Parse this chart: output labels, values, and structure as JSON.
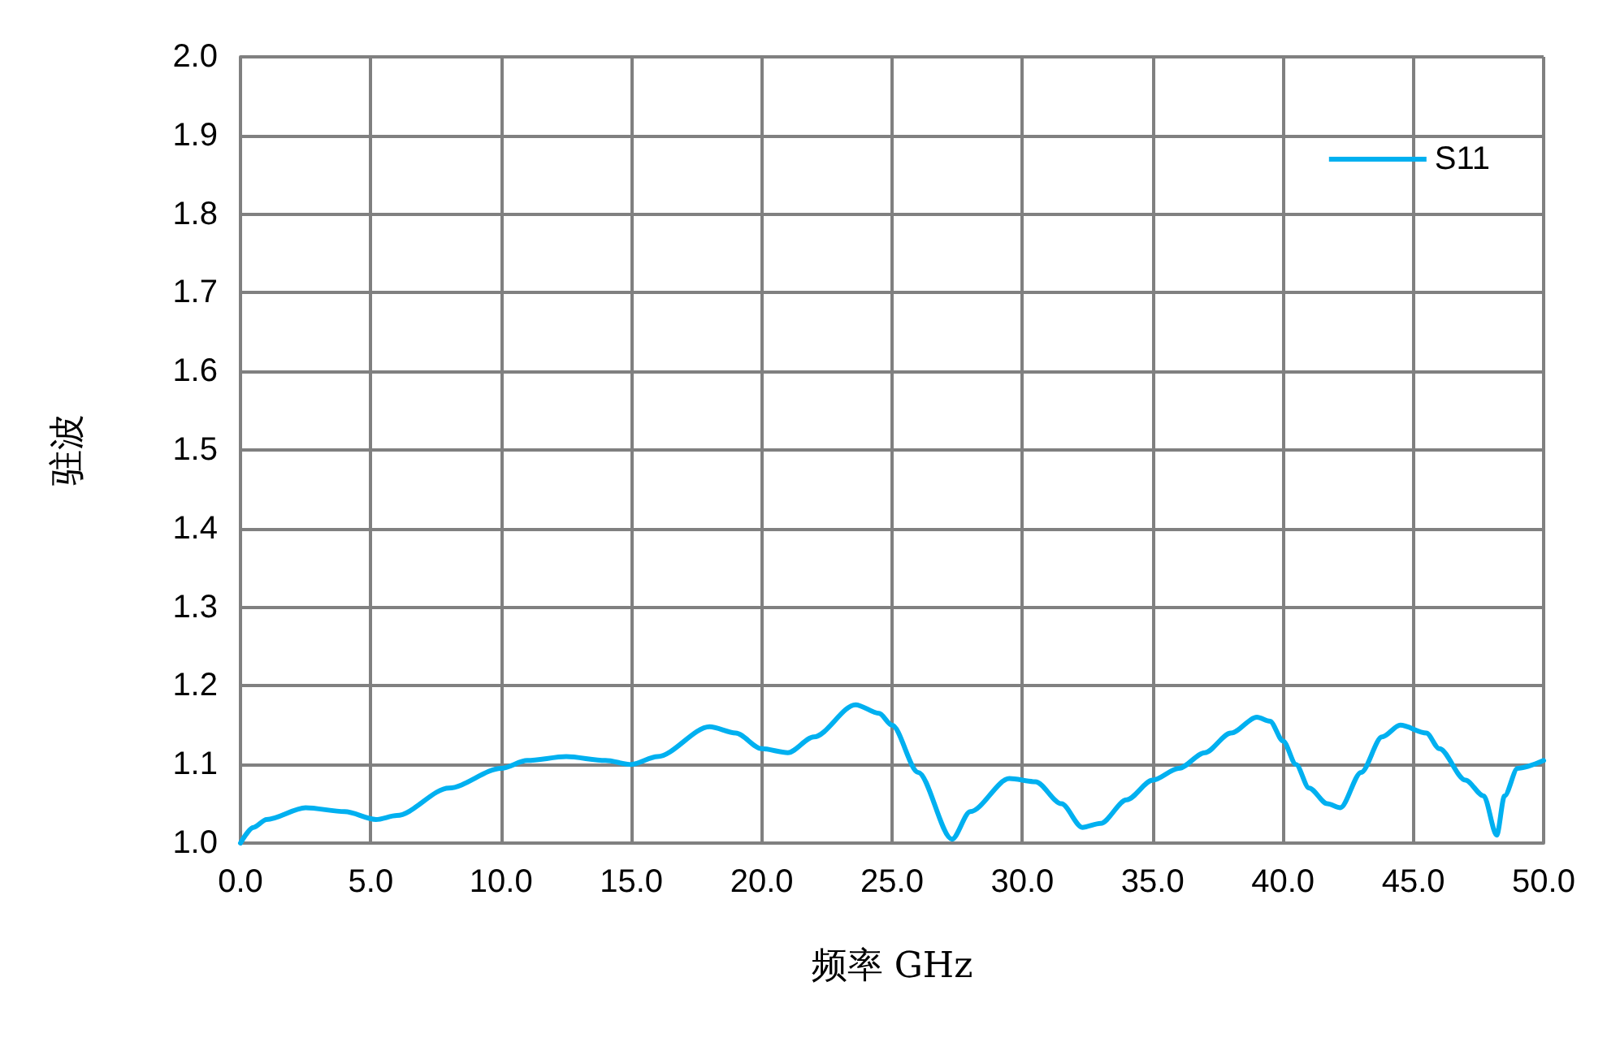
{
  "chart_data": {
    "type": "line",
    "xlabel": "频率 GHz",
    "ylabel": "驻波",
    "xlim": [
      0,
      50
    ],
    "xticks": [
      {
        "value": 0,
        "label": "0.0"
      },
      {
        "value": 5,
        "label": "5.0"
      },
      {
        "value": 10,
        "label": "10.0"
      },
      {
        "value": 15,
        "label": "15.0"
      },
      {
        "value": 20,
        "label": "20.0"
      },
      {
        "value": 25,
        "label": "25.0"
      },
      {
        "value": 30,
        "label": "30.0"
      },
      {
        "value": 35,
        "label": "35.0"
      },
      {
        "value": 40,
        "label": "40.0"
      },
      {
        "value": 45,
        "label": "45.0"
      },
      {
        "value": 50,
        "label": "50.0"
      }
    ],
    "ylim": [
      1,
      2
    ],
    "yticks": [
      {
        "value": 1,
        "label": "1.0"
      },
      {
        "value": 1.1,
        "label": "1.1"
      },
      {
        "value": 1.2,
        "label": "1.2"
      },
      {
        "value": 1.3,
        "label": "1.3"
      },
      {
        "value": 1.4,
        "label": "1.4"
      },
      {
        "value": 1.5,
        "label": "1.5"
      },
      {
        "value": 1.6,
        "label": "1.6"
      },
      {
        "value": 1.7,
        "label": "1.7"
      },
      {
        "value": 1.8,
        "label": "1.8"
      },
      {
        "value": 1.9,
        "label": "1.9"
      },
      {
        "value": 2,
        "label": "2.0"
      }
    ],
    "grid": true,
    "legend": "top right",
    "marker": "none",
    "line_style": "solid",
    "x": [
      0,
      0.5,
      1,
      2.5,
      4,
      5.2,
      6,
      8,
      10,
      11,
      12.5,
      14,
      15,
      16,
      18,
      19,
      20,
      21,
      22,
      23.6,
      24.5,
      25,
      26,
      27.3,
      28,
      29.5,
      30.5,
      31.5,
      32.3,
      33,
      34,
      35,
      36,
      37,
      38,
      39,
      39.5,
      40,
      40.5,
      41,
      41.7,
      42.2,
      43,
      43.8,
      44.5,
      45.5,
      46,
      47,
      47.7,
      48.2,
      48.5,
      49,
      50
    ],
    "series": [
      {
        "name": "S11",
        "color": "#00b0f0",
        "values": [
          1.0,
          1.02,
          1.03,
          1.045,
          1.04,
          1.03,
          1.035,
          1.07,
          1.095,
          1.105,
          1.11,
          1.105,
          1.1,
          1.11,
          1.148,
          1.14,
          1.12,
          1.115,
          1.135,
          1.176,
          1.165,
          1.15,
          1.09,
          1.005,
          1.04,
          1.082,
          1.078,
          1.05,
          1.02,
          1.025,
          1.055,
          1.08,
          1.095,
          1.115,
          1.14,
          1.16,
          1.155,
          1.13,
          1.1,
          1.07,
          1.05,
          1.045,
          1.09,
          1.135,
          1.15,
          1.14,
          1.12,
          1.08,
          1.06,
          1.01,
          1.06,
          1.095,
          1.105
        ]
      }
    ]
  }
}
